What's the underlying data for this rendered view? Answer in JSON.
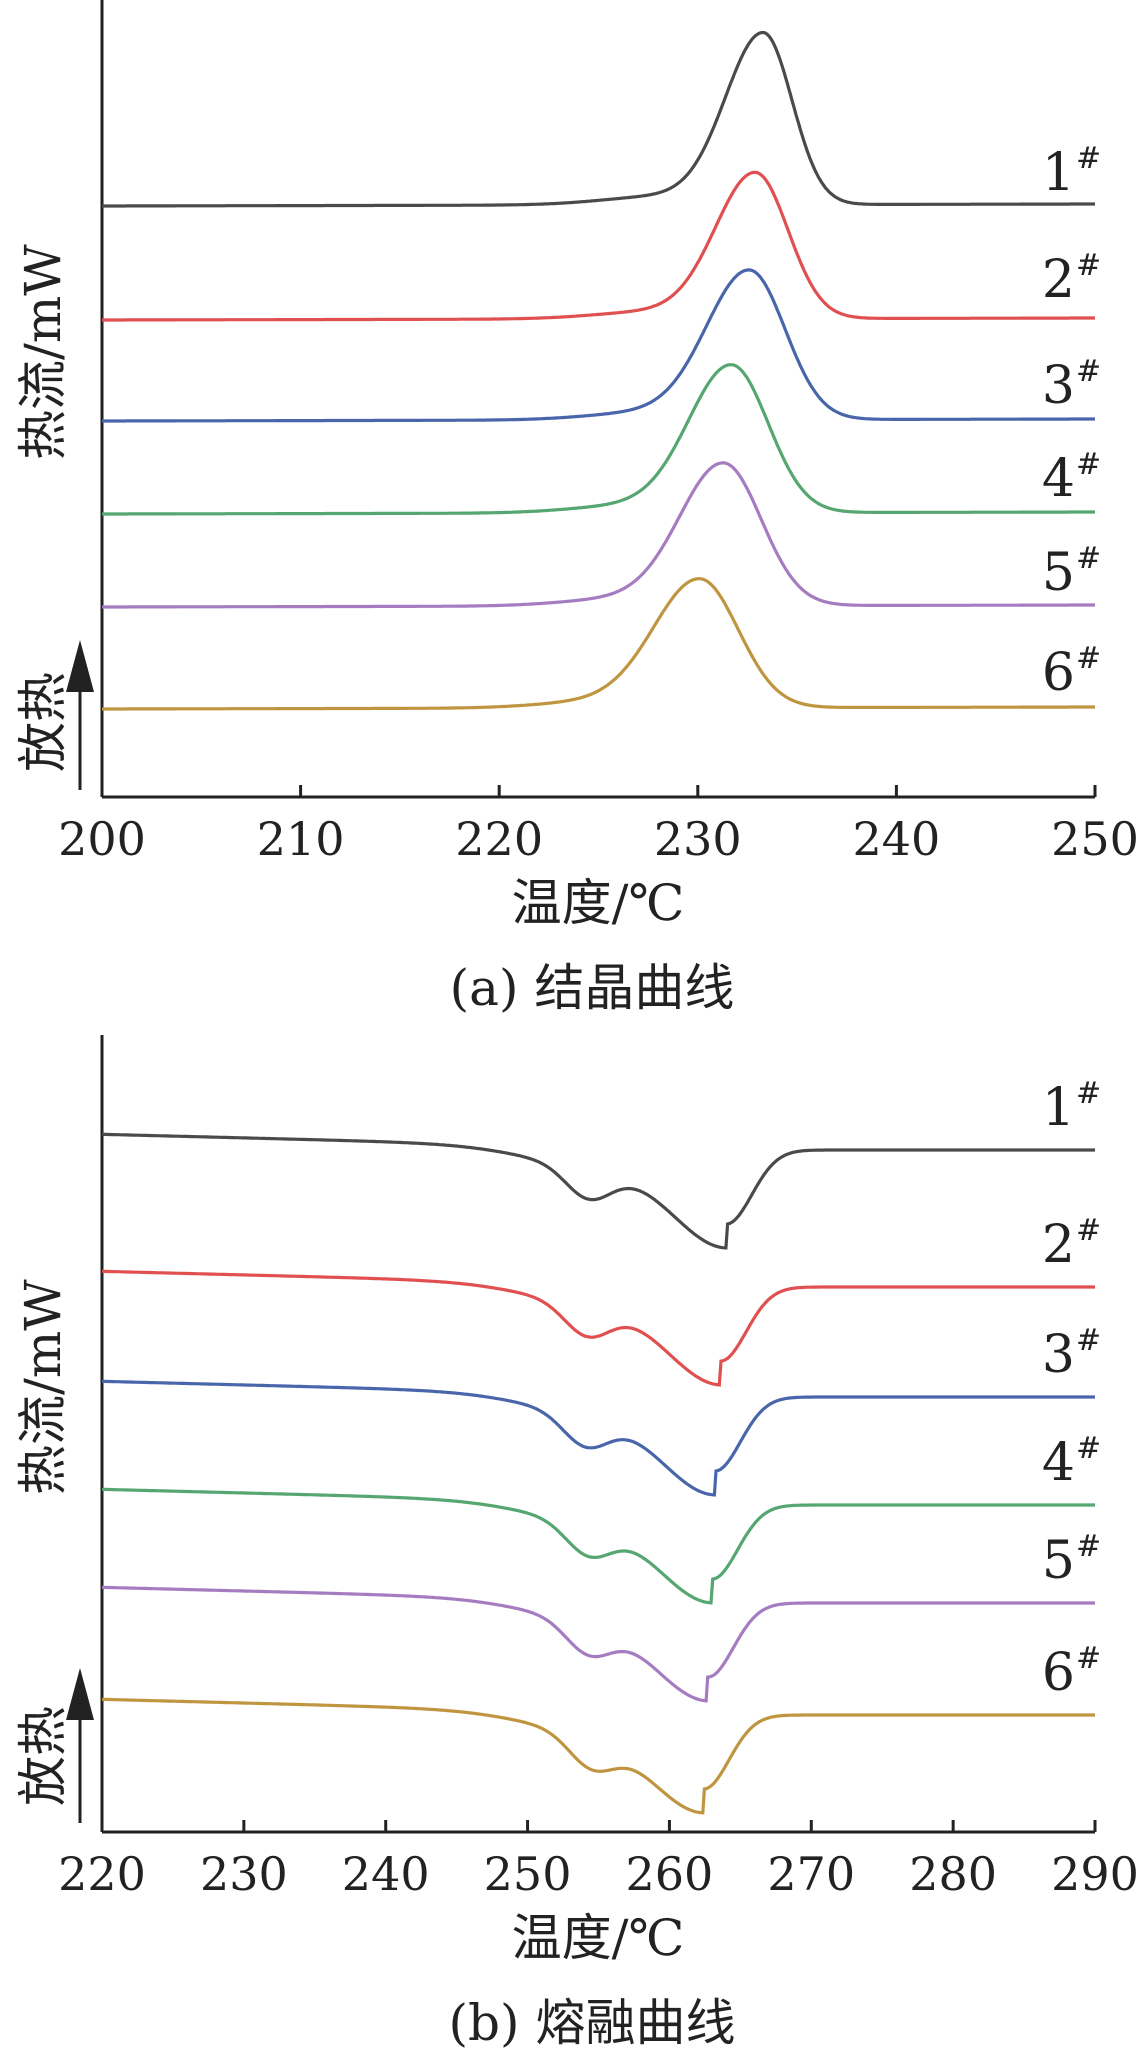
{
  "chart_data": [
    {
      "type": "line",
      "caption": "(a) 结晶曲线",
      "xlabel": "温度/℃",
      "ylabel": "热流/mW",
      "exo_label": "放热",
      "xlim": [
        200,
        250
      ],
      "xticks": [
        "200",
        "210",
        "220",
        "230",
        "240",
        "250"
      ],
      "series": [
        {
          "name": "1",
          "suffix": "#",
          "color": "#4a4a4a",
          "kind": "peak",
          "peak_temp": 233.3,
          "height": 1.0,
          "width": 1.9,
          "left_width": 1.9,
          "right_width": 1.45
        },
        {
          "name": "2",
          "suffix": "#",
          "color": "#e05050",
          "kind": "peak",
          "peak_temp": 232.9,
          "height": 0.85,
          "width": 2.0,
          "left_width": 2.0,
          "right_width": 1.65
        },
        {
          "name": "3",
          "suffix": "#",
          "color": "#4a66aa",
          "kind": "peak",
          "peak_temp": 232.6,
          "height": 0.87,
          "width": 2.1,
          "left_width": 2.15,
          "right_width": 1.8
        },
        {
          "name": "4",
          "suffix": "#",
          "color": "#55a670",
          "kind": "peak",
          "peak_temp": 231.7,
          "height": 0.86,
          "width": 2.1,
          "left_width": 2.15,
          "right_width": 1.85
        },
        {
          "name": "5",
          "suffix": "#",
          "color": "#a57cc0",
          "kind": "peak",
          "peak_temp": 231.3,
          "height": 0.83,
          "width": 2.1,
          "left_width": 2.2,
          "right_width": 1.9
        },
        {
          "name": "6",
          "suffix": "#",
          "color": "#bf9540",
          "kind": "peak",
          "peak_temp": 230.1,
          "height": 0.75,
          "width": 2.2,
          "left_width": 2.3,
          "right_width": 1.95
        }
      ]
    },
    {
      "type": "line",
      "caption": "(b) 熔融曲线",
      "xlabel": "温度/℃",
      "ylabel": "热流/mW",
      "exo_label": "放热",
      "xlim": [
        220,
        290
      ],
      "xticks": [
        "220",
        "230",
        "240",
        "250",
        "260",
        "270",
        "280",
        "290"
      ],
      "series": [
        {
          "name": "1",
          "suffix": "#",
          "color": "#4a4a4a",
          "kind": "melt",
          "main_peak": 264.0,
          "shoulder": 254.3
        },
        {
          "name": "2",
          "suffix": "#",
          "color": "#e05050",
          "kind": "melt",
          "main_peak": 263.6,
          "shoulder": 254.2
        },
        {
          "name": "3",
          "suffix": "#",
          "color": "#4a66aa",
          "kind": "melt",
          "main_peak": 263.2,
          "shoulder": 254.1
        },
        {
          "name": "4",
          "suffix": "#",
          "color": "#55a670",
          "kind": "melt",
          "main_peak": 263.0,
          "shoulder": 254.3
        },
        {
          "name": "5",
          "suffix": "#",
          "color": "#a57cc0",
          "kind": "melt",
          "main_peak": 262.7,
          "shoulder": 254.3
        },
        {
          "name": "6",
          "suffix": "#",
          "color": "#bf9540",
          "kind": "melt",
          "main_peak": 262.4,
          "shoulder": 254.5
        }
      ]
    }
  ]
}
